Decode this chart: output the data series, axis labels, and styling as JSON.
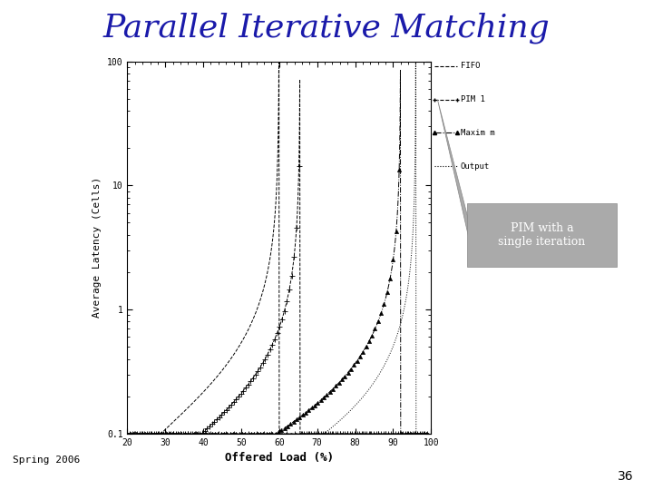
{
  "title": "Parallel Iterative Matching",
  "title_color": "#1a1aaa",
  "title_fontsize": 26,
  "xlabel": "Offered Load (%)",
  "ylabel": "Average Latency (Cells)",
  "xlim": [
    20,
    100
  ],
  "ylim_log": [
    0.1,
    100
  ],
  "xticks": [
    20,
    30,
    40,
    50,
    60,
    70,
    80,
    90,
    100
  ],
  "ytick_labels": [
    "0.1",
    "1",
    "10",
    "100"
  ],
  "ytick_vals": [
    0.1,
    1.0,
    10.0,
    100.0
  ],
  "spring2006_text": "Spring 2006",
  "slide_number": "36",
  "callout_text": "PIM with a\nsingle iteration",
  "legend_labels": [
    "FIFO",
    "PIM 1",
    "Maxim m",
    "Output"
  ],
  "bg_color": "#ffffff",
  "plot_bg_color": "#ffffff",
  "callout_box_color": "#999999",
  "callout_text_color": "#ffffff"
}
